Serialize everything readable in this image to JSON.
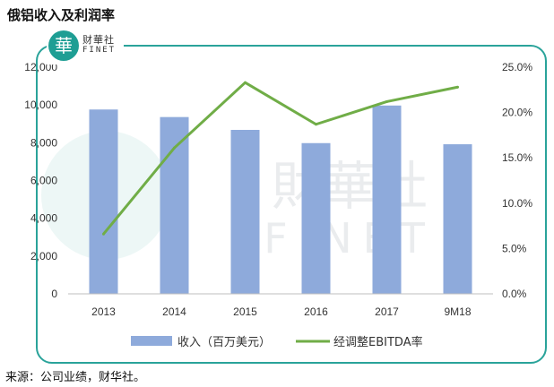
{
  "title": "俄铝收入及利润率",
  "logo": {
    "icon": "华-logo-icon",
    "char": "華",
    "name_cn": "财華社",
    "name_en": "FINET"
  },
  "watermark": {
    "cn": "財華社",
    "en": "FINET"
  },
  "source": "来源：公司业绩，财华社。",
  "chart_data": {
    "type": "bar",
    "categories": [
      "2013",
      "2014",
      "2015",
      "2016",
      "2017",
      "9M18"
    ],
    "series": [
      {
        "name": "收入（百万美元）",
        "type": "bar",
        "axis": "left",
        "color": "#8eaadb",
        "values": [
          9760,
          9360,
          8680,
          7980,
          9970,
          7920
        ]
      },
      {
        "name": "经调整EBITDA率",
        "type": "line",
        "axis": "right",
        "color": "#70ad47",
        "values": [
          6.6,
          16.1,
          23.3,
          18.7,
          21.2,
          22.8
        ]
      }
    ],
    "y_left": {
      "ylim": [
        0,
        12000
      ],
      "ticks": [
        "0",
        "2,000",
        "4,000",
        "6,000",
        "8,000",
        "10,000",
        "12,000"
      ]
    },
    "y_right": {
      "ylim": [
        0,
        25
      ],
      "ticks": [
        "0.0%",
        "5.0%",
        "10.0%",
        "15.0%",
        "20.0%",
        "25.0%"
      ]
    },
    "grid": false,
    "legend": "bottom"
  }
}
